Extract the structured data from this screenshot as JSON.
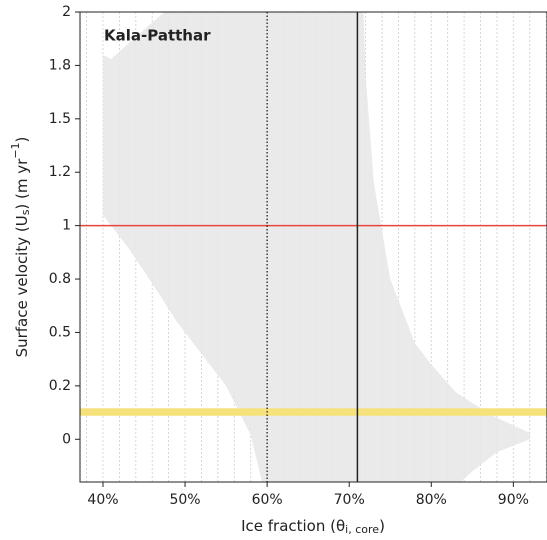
{
  "chart_data": {
    "type": "area",
    "annotation": "Kala-Patthar",
    "xlabel": [
      "Ice fraction (θ",
      "i, core",
      ")"
    ],
    "ylabel": [
      "Surface velocity (U",
      "s",
      ") (m yr",
      "−1",
      ")"
    ],
    "x": [
      40,
      41,
      43,
      46,
      49,
      52,
      55,
      58,
      60,
      70,
      71.5,
      72,
      73,
      75,
      78,
      80,
      83,
      85,
      88,
      92
    ],
    "upper": [
      1.8,
      1.78,
      1.85,
      1.95,
      2.05,
      2.3,
      2.3,
      2.3,
      2.3,
      2.3,
      2.3,
      1.7,
      1.2,
      0.75,
      0.45,
      0.35,
      0.22,
      0.17,
      0.1,
      0.03
    ],
    "lower": [
      1.05,
      1.0,
      0.9,
      0.73,
      0.55,
      0.4,
      0.25,
      0.02,
      -0.3,
      -0.3,
      -0.3,
      -0.3,
      -0.3,
      -0.3,
      -0.3,
      -0.3,
      -0.22,
      -0.15,
      -0.06,
      0.0
    ],
    "color": "#e6e6e6",
    "xlim": [
      37.2,
      94.1
    ],
    "ylim": [
      -0.2,
      2.0
    ],
    "xticks": [
      {
        "value": 40,
        "label": "40%"
      },
      {
        "value": 50,
        "label": "50%"
      },
      {
        "value": 60,
        "label": "60%"
      },
      {
        "value": 70,
        "label": "70%"
      },
      {
        "value": 80,
        "label": "80%"
      },
      {
        "value": 90,
        "label": "90%"
      }
    ],
    "x_minor_grid": [
      38,
      40,
      42,
      44,
      46,
      48,
      50,
      52,
      54,
      56,
      58,
      60,
      62,
      64,
      66,
      68,
      70,
      72,
      74,
      76,
      78,
      80,
      82,
      84,
      86,
      88,
      90,
      92,
      94
    ],
    "yticks": [
      0.0,
      {
        "value": 0.25,
        "label": "0.2"
      },
      0.5,
      {
        "value": 0.75,
        "label": "0.8"
      },
      1.0,
      {
        "value": 1.25,
        "label": "1.2"
      },
      1.5,
      {
        "value": 1.75,
        "label": "1.8"
      },
      2.0
    ],
    "yticklabels": [
      "0.0",
      "0.2",
      "0.5",
      "0.8",
      "1.0",
      "1.2",
      "1.5",
      "1.8",
      "2.0"
    ],
    "vlines": [
      {
        "x": 60,
        "style": "dotted",
        "color": "#222222"
      },
      {
        "x": 71,
        "style": "solid",
        "color": "#222222"
      }
    ],
    "hlines": [
      {
        "y": 1.0,
        "color": "#e8453c"
      }
    ],
    "band": {
      "range": [
        0.11,
        0.145
      ],
      "color": "#f6e27a"
    }
  }
}
